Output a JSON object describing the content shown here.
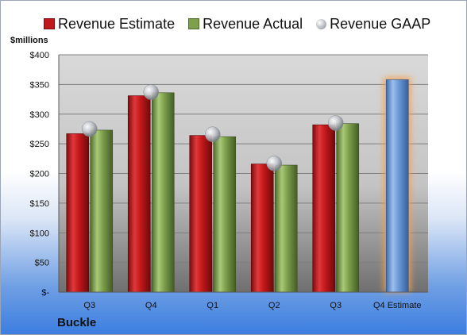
{
  "chart_data": {
    "type": "bar",
    "categories": [
      "Q3",
      "Q4",
      "Q1",
      "Q2",
      "Q3",
      "Q4 Estimate"
    ],
    "series": [
      {
        "name": "Revenue Estimate",
        "values": [
          267,
          331,
          264,
          216,
          282,
          null
        ],
        "color": "#c0191c"
      },
      {
        "name": "Revenue Actual",
        "values": [
          273,
          336,
          262,
          214,
          284,
          null
        ],
        "color": "#7ea04d"
      },
      {
        "name": "Revenue GAAP",
        "values": [
          275,
          337,
          266,
          217,
          285,
          null
        ],
        "marker": "sphere",
        "color": "#c3c6cc"
      }
    ],
    "highlight": {
      "category": "Q4 Estimate",
      "value": 358,
      "color": "#6b9bd8",
      "glow": "#f5a04a"
    },
    "ylabel": "$millions",
    "ylim": [
      0,
      400
    ],
    "yticks": [
      0,
      50,
      100,
      150,
      200,
      250,
      300,
      350,
      400
    ],
    "ytick_labels": [
      "$-",
      "$50",
      "$100",
      "$150",
      "$200",
      "$250",
      "$300",
      "$350",
      "$400"
    ],
    "legend_position": "top",
    "grid": true,
    "company": "Buckle"
  }
}
